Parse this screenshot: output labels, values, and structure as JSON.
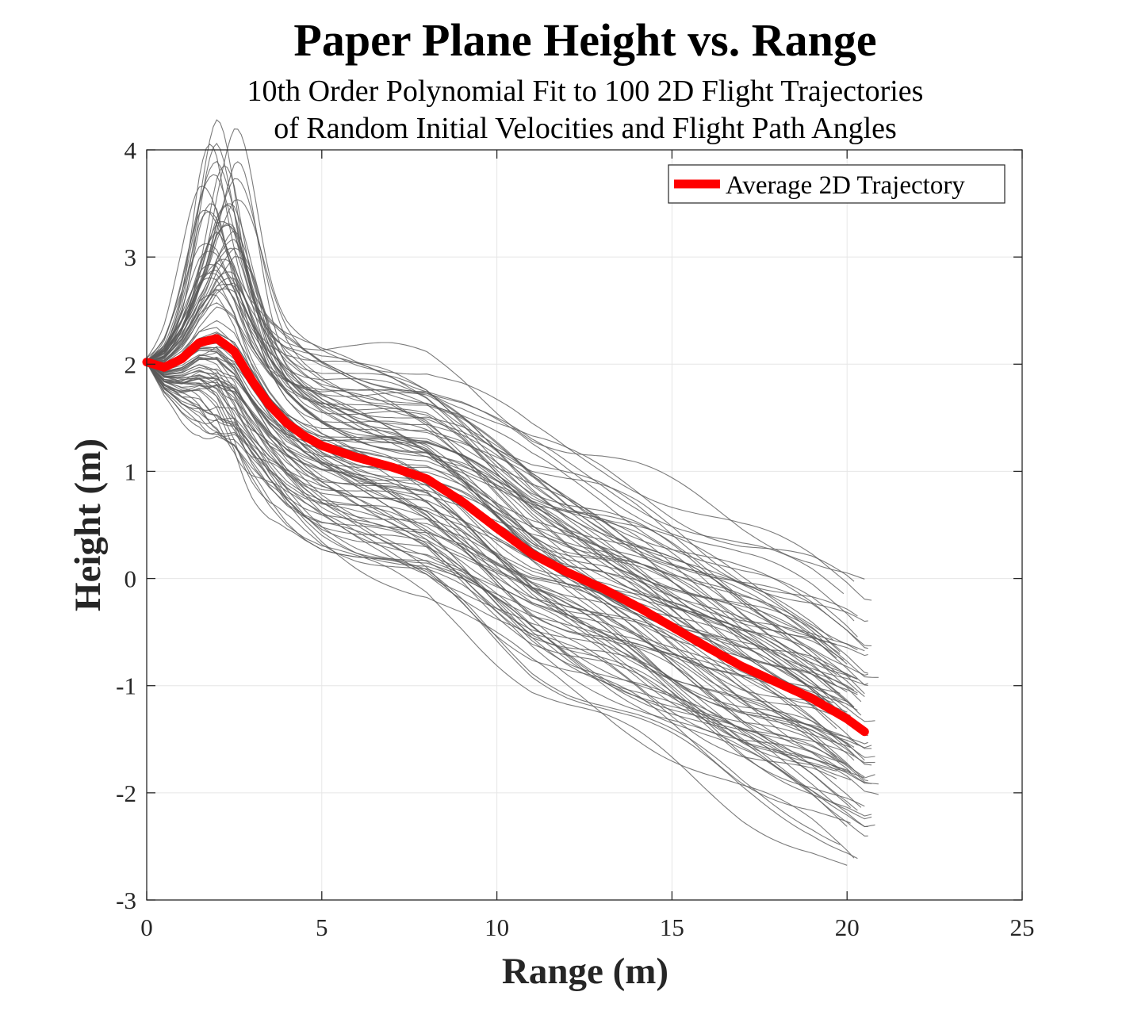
{
  "chart_data": {
    "type": "line",
    "title": "Paper Plane Height vs. Range",
    "subtitle_lines": [
      "10th Order Polynomial Fit to 100 2D Flight Trajectories",
      "of Random Initial Velocities and Flight Path Angles"
    ],
    "xlabel": "Range (m)",
    "ylabel": "Height (m)",
    "xlim": [
      0,
      25
    ],
    "ylim": [
      -3,
      4
    ],
    "x_ticks": [
      "0",
      "5",
      "10",
      "15",
      "20",
      "25"
    ],
    "y_ticks": [
      "4",
      "3",
      "2",
      "1",
      "0",
      "-1",
      "-2",
      "-3"
    ],
    "grid": true,
    "legend_position": "top-right",
    "colors": {
      "average": "#ff0000",
      "trajectories": "#5a5a5a",
      "grid": "#e6e6e6",
      "axes": "#262626"
    },
    "trajectory_count": 100,
    "series": [
      {
        "name": "Average 2D Trajectory",
        "x": [
          0,
          0.5,
          1,
          1.5,
          2,
          2.5,
          3,
          3.5,
          4,
          4.5,
          5,
          6,
          7,
          8,
          9,
          10,
          11,
          12,
          13,
          14,
          15,
          16,
          17,
          18,
          19,
          20,
          20.5
        ],
        "y": [
          2.02,
          1.97,
          2.05,
          2.2,
          2.24,
          2.12,
          1.85,
          1.62,
          1.45,
          1.33,
          1.24,
          1.13,
          1.04,
          0.93,
          0.72,
          0.47,
          0.23,
          0.06,
          -0.09,
          -0.26,
          -0.45,
          -0.64,
          -0.82,
          -0.97,
          -1.12,
          -1.31,
          -1.43
        ]
      }
    ]
  }
}
